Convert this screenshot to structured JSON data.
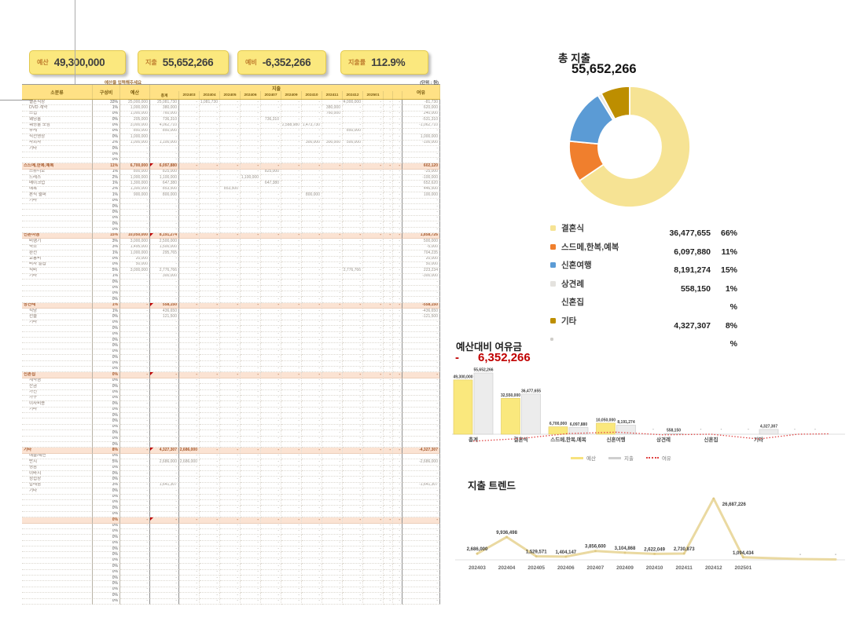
{
  "kpi": {
    "items": [
      {
        "label": "예산",
        "value": "49,300,000"
      },
      {
        "label": "지출",
        "value": "55,652,266"
      },
      {
        "label": "예비",
        "value": "-6,352,266"
      },
      {
        "label": "지출률",
        "value": "112.9%"
      }
    ]
  },
  "table": {
    "note": "예산을 입력해주세요",
    "unit": "(단위 : 원)",
    "headers": {
      "subcat": "소분류",
      "ratio": "구성비",
      "budget": "예산",
      "spend": "지출",
      "total": "총계",
      "rem": "여유"
    },
    "month_labels": [
      "202403",
      "202404",
      "202405",
      "202406",
      "202407",
      "202409",
      "202410",
      "202411",
      "202412",
      "202501"
    ],
    "rows": [
      [
        "i",
        "결혼식장",
        "33%",
        "25,000,000",
        "25,081,730",
        {
          "1": "1,081,730",
          "8": "24,000,000"
        },
        "-81,730"
      ],
      [
        "i",
        "DVD 계약",
        "1%",
        "1,000,000",
        "380,000",
        {
          "7": "380,000"
        },
        "620,000"
      ],
      [
        "i",
        "스냅",
        "0%",
        "1,000,000",
        "760,000",
        {
          "7": "760,000"
        },
        "240,000"
      ],
      [
        "i",
        "웨딩홀",
        "0%",
        "205,000",
        "736,310",
        {
          "4": "736,310"
        },
        "-531,310"
      ],
      [
        "i",
        "웨딩홀 모임",
        "0%",
        "3,000,000",
        "4,062,710",
        {
          "5": "2,588,980",
          "6": "1,473,730"
        },
        "-1,062,710"
      ],
      [
        "i",
        "부케",
        "0%",
        "850,000",
        "850,000",
        {
          "8": "850,000"
        },
        "-"
      ],
      [
        "i",
        "식전영상",
        "0%",
        "1,000,000",
        "-",
        null,
        "1,000,000"
      ],
      [
        "i",
        "사회자",
        "2%",
        "1,000,000",
        "1,100,000",
        {
          "6": "300,000",
          "7": "300,000",
          "8": "500,000"
        },
        "-100,000"
      ],
      [
        "i",
        "기타",
        "0%",
        "-",
        "-",
        null,
        "-"
      ],
      [
        "b"
      ],
      [
        "b"
      ],
      [
        "g",
        "스드메,한복,예복",
        "11%",
        "6,700,000",
        "6,097,880",
        null,
        "602,120"
      ],
      [
        "i",
        "스튜디오",
        "1%",
        "800,000",
        "825,000",
        {
          "4": "825,000"
        },
        "-25,000"
      ],
      [
        "i",
        "드레스",
        "2%",
        "1,000,000",
        "1,100,000",
        {
          "3": "1,100,000"
        },
        "-100,000"
      ],
      [
        "i",
        "메이크업",
        "1%",
        "1,300,000",
        "647,380",
        {
          "4": "647,380"
        },
        "652,620"
      ],
      [
        "i",
        "예복",
        "2%",
        "1,300,000",
        "853,500",
        {
          "2": "853,500"
        },
        "446,500"
      ],
      [
        "i",
        "본식 헬퍼",
        "1%",
        "900,000",
        "800,000",
        {
          "6": "800,000"
        },
        "100,000"
      ],
      [
        "i",
        "기타",
        "0%",
        "-",
        "-",
        null,
        "-"
      ],
      [
        "b"
      ],
      [
        "b"
      ],
      [
        "b"
      ],
      [
        "b"
      ],
      [
        "b"
      ],
      [
        "g",
        "신혼여행",
        "15%",
        "10,050,000",
        "8,191,274",
        null,
        "1,858,726"
      ],
      [
        "i",
        "비행기",
        "3%",
        "3,000,000",
        "2,500,000",
        null,
        "500,000"
      ],
      [
        "i",
        "숙소",
        "3%",
        "1,495,000",
        "1,500,000",
        null,
        "-5,000"
      ],
      [
        "i",
        "환전",
        "1%",
        "1,000,000",
        "295,765",
        null,
        "704,235"
      ],
      [
        "i",
        "교통비",
        "0%",
        "20,000",
        "-",
        null,
        "20,000"
      ],
      [
        "i",
        "비자 발급",
        "0%",
        "50,000",
        "-",
        null,
        "50,000"
      ],
      [
        "i",
        "식비",
        "5%",
        "3,000,000",
        "2,776,766",
        {
          "8": "2,776,766"
        },
        "223,234"
      ],
      [
        "i",
        "기타",
        "1%",
        "-",
        "300,000",
        null,
        "-300,000"
      ],
      [
        "b"
      ],
      [
        "b"
      ],
      [
        "b"
      ],
      [
        "b"
      ],
      [
        "g",
        "상견례",
        "1%",
        "-",
        "558,150",
        null,
        "-558,150"
      ],
      [
        "i",
        "식당",
        "1%",
        "-",
        "436,650",
        null,
        "-436,650"
      ],
      [
        "i",
        "선물",
        "0%",
        "-",
        "121,500",
        null,
        "-121,500"
      ],
      [
        "i",
        "기타",
        "0%",
        "-",
        "-",
        null,
        "-"
      ],
      [
        "b"
      ],
      [
        "b"
      ],
      [
        "b"
      ],
      [
        "b"
      ],
      [
        "b"
      ],
      [
        "b"
      ],
      [
        "b"
      ],
      [
        "b"
      ],
      [
        "g",
        "신혼집",
        "0%",
        "-",
        "-",
        null,
        "-"
      ],
      [
        "i",
        "계약금",
        "0%",
        "-",
        "-",
        null,
        "-"
      ],
      [
        "i",
        "잔금",
        "0%",
        "-",
        "-",
        null,
        "-"
      ],
      [
        "i",
        "가전",
        "0%",
        "-",
        "-",
        null,
        "-"
      ],
      [
        "i",
        "가구",
        "0%",
        "-",
        "-",
        null,
        "-"
      ],
      [
        "i",
        "이사비용",
        "0%",
        "-",
        "-",
        null,
        "-"
      ],
      [
        "i",
        "기타",
        "0%",
        "-",
        "-",
        null,
        "-"
      ],
      [
        "b"
      ],
      [
        "b"
      ],
      [
        "b"
      ],
      [
        "b"
      ],
      [
        "b"
      ],
      [
        "b"
      ],
      [
        "g",
        "기타",
        "8%",
        "-",
        "4,327,307",
        {
          "0": "2,686,000"
        },
        "-4,327,307"
      ],
      [
        "i",
        "예물/예단",
        "0%",
        "-",
        "-",
        null,
        "-"
      ],
      [
        "i",
        "반지",
        "5%",
        "-",
        "2,686,000",
        {
          "0": "2,686,000"
        },
        "-2,686,000"
      ],
      [
        "i",
        "명품",
        "0%",
        "-",
        "-",
        null,
        "-"
      ],
      [
        "i",
        "이바지",
        "0%",
        "-",
        "-",
        null,
        "-"
      ],
      [
        "i",
        "청첩장",
        "0%",
        "-",
        "-",
        null,
        "-"
      ],
      [
        "i",
        "답례품",
        "3%",
        "-",
        "1,641,307",
        null,
        "-1,641,307"
      ],
      [
        "i",
        "기타",
        "0%",
        "-",
        "-",
        null,
        "-"
      ],
      [
        "b"
      ],
      [
        "b"
      ],
      [
        "b"
      ],
      [
        "b"
      ],
      [
        "g",
        "",
        "0%",
        "-",
        "-",
        null,
        "-"
      ],
      [
        "b"
      ],
      [
        "b"
      ],
      [
        "b"
      ],
      [
        "b"
      ],
      [
        "b"
      ],
      [
        "b"
      ],
      [
        "b"
      ],
      [
        "b"
      ],
      [
        "b"
      ],
      [
        "b"
      ],
      [
        "b"
      ],
      [
        "b"
      ],
      [
        "b"
      ],
      [
        "b"
      ]
    ]
  },
  "chart_data": [
    {
      "type": "pie",
      "title": "총 지출",
      "total_label": "55,652,266",
      "slices": [
        {
          "label": "결혼식",
          "value": 36477655,
          "color": "#F6E394"
        },
        {
          "label": "스드메,한복,예복",
          "value": 6097880,
          "color": "#F07F2D"
        },
        {
          "label": "신혼여행",
          "value": 8191274,
          "color": "#5B9BD5"
        },
        {
          "label": "상견례",
          "value": 558150,
          "color": "#ECEAE6"
        },
        {
          "label": "기타",
          "value": 4327307,
          "color": "#BD8E00"
        }
      ],
      "legend": [
        {
          "label": "결혼식",
          "color": "#F6E394",
          "value": "36,477,655",
          "pct": "66%"
        },
        {
          "label": "스드메,한복,예복",
          "color": "#F07F2D",
          "value": "6,097,880",
          "pct": "11%"
        },
        {
          "label": "신혼여행",
          "color": "#5B9BD5",
          "value": "8,191,274",
          "pct": "15%"
        },
        {
          "label": "상견례",
          "color": "#E4E2DE",
          "value": "558,150",
          "pct": "1%"
        },
        {
          "label": "신혼집",
          "color": "",
          "value": "",
          "pct": "%"
        },
        {
          "label": "기타",
          "color": "#BD8E00",
          "value": "4,327,307",
          "pct": "8%"
        },
        {
          "label": "",
          "color": "#CFCDC9",
          "value": "",
          "pct": "%"
        }
      ]
    },
    {
      "type": "bar",
      "title": "예산대비 여유금",
      "minus": "-",
      "value_label": "6,352,266",
      "categories": [
        "총계",
        "결혼식",
        "스드메,한복,예복",
        "신혼여행",
        "상견례",
        "신혼집",
        "기타"
      ],
      "series": [
        {
          "name": "예산",
          "values": [
            49300000,
            32550000,
            6700000,
            10050000,
            null,
            null,
            null
          ],
          "labels": [
            "49,300,000",
            "32,550,000",
            "6,700,000",
            "10,050,000",
            "-",
            "-",
            "-"
          ],
          "color": "#FAE87D"
        },
        {
          "name": "지출",
          "values": [
            55652266,
            36477655,
            6097880,
            8191274,
            558150,
            null,
            4327307
          ],
          "labels": [
            "55,652,266",
            "36,477,655",
            "6,097,880",
            "8,191,274",
            "558,150",
            "-",
            "4,327,307"
          ],
          "color": "#ECECEC"
        }
      ],
      "rem_line": {
        "name": "여유",
        "values": [
          -6352266,
          -3927655,
          602120,
          1858726,
          -558150,
          0,
          -4327307
        ],
        "color": "#E04545"
      },
      "legend": [
        "예산",
        "지출",
        "여유"
      ],
      "ylim": [
        0,
        55652266
      ]
    },
    {
      "type": "line",
      "title": "지출 트렌드",
      "x": [
        "202403",
        "202404",
        "202405",
        "202406",
        "202407",
        "202409",
        "202410",
        "202411",
        "202412",
        "202501"
      ],
      "values": [
        2686000,
        9936498,
        1529571,
        1404147,
        3856600,
        3104868,
        2622049,
        2730873,
        26687226,
        1094434
      ],
      "labels": [
        "2,686,000",
        "9,936,498",
        "1,529,571",
        "1,404,147",
        "3,856,600",
        "3,104,868",
        "2,622,049",
        "2,730,873",
        "26,687,226",
        "1,094,434"
      ],
      "tail_label": "-",
      "color": "#EAD9A1",
      "ylim": [
        0,
        26687226
      ]
    }
  ]
}
